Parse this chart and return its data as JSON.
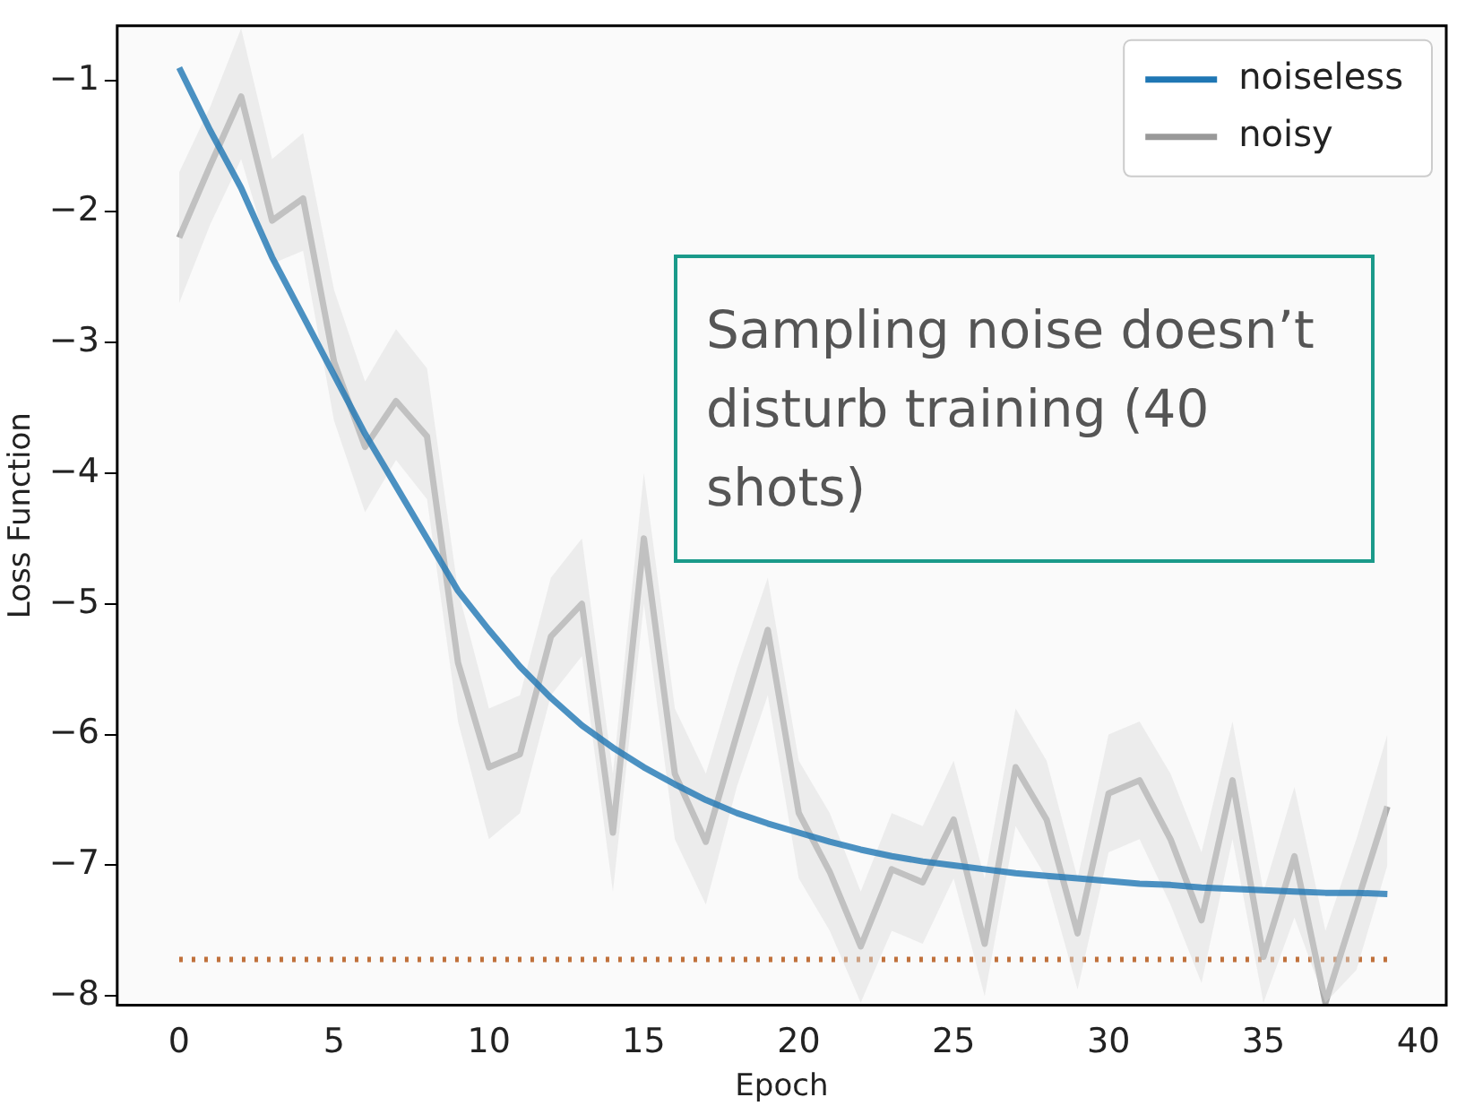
{
  "chart_data": {
    "type": "line",
    "xlabel": "Epoch",
    "ylabel": "Loss Function",
    "x": [
      0,
      1,
      2,
      3,
      4,
      5,
      6,
      7,
      8,
      9,
      10,
      11,
      12,
      13,
      14,
      15,
      16,
      17,
      18,
      19,
      20,
      21,
      22,
      23,
      24,
      25,
      26,
      27,
      28,
      29,
      30,
      31,
      32,
      33,
      34,
      35,
      36,
      37,
      38,
      39
    ],
    "series": [
      {
        "name": "noiseless",
        "color": "#1f77b4",
        "values": [
          -0.9,
          -1.38,
          -1.82,
          -2.35,
          -2.8,
          -3.25,
          -3.7,
          -4.1,
          -4.5,
          -4.9,
          -5.2,
          -5.48,
          -5.72,
          -5.93,
          -6.1,
          -6.25,
          -6.38,
          -6.5,
          -6.6,
          -6.68,
          -6.75,
          -6.82,
          -6.88,
          -6.93,
          -6.97,
          -7.0,
          -7.03,
          -7.06,
          -7.08,
          -7.1,
          -7.12,
          -7.14,
          -7.15,
          -7.17,
          -7.18,
          -7.19,
          -7.2,
          -7.21,
          -7.21,
          -7.22
        ]
      },
      {
        "name": "noisy",
        "color": "#999999",
        "values": [
          -2.2,
          -1.65,
          -1.12,
          -2.07,
          -1.9,
          -3.15,
          -3.8,
          -3.45,
          -3.72,
          -5.45,
          -6.25,
          -6.15,
          -5.25,
          -5.0,
          -6.75,
          -4.5,
          -6.3,
          -6.82,
          -6.0,
          -5.2,
          -6.6,
          -7.05,
          -7.62,
          -7.03,
          -7.13,
          -6.65,
          -7.6,
          -6.25,
          -6.65,
          -7.52,
          -6.45,
          -6.35,
          -6.8,
          -7.42,
          -6.35,
          -7.7,
          -6.93,
          -8.05,
          -7.3,
          -6.55
        ],
        "lower": [
          -2.7,
          -2.1,
          -1.6,
          -2.4,
          -2.3,
          -3.6,
          -4.3,
          -3.9,
          -4.2,
          -5.9,
          -6.8,
          -6.6,
          -5.7,
          -5.4,
          -7.2,
          -5.0,
          -6.8,
          -7.3,
          -6.4,
          -5.7,
          -7.1,
          -7.5,
          -8.05,
          -7.5,
          -7.6,
          -7.1,
          -8.0,
          -6.7,
          -7.1,
          -7.95,
          -6.9,
          -6.8,
          -7.3,
          -7.9,
          -6.8,
          -8.05,
          -7.4,
          -8.05,
          -7.8,
          -7.0
        ],
        "upper": [
          -1.7,
          -1.2,
          -0.6,
          -1.6,
          -1.4,
          -2.6,
          -3.3,
          -2.9,
          -3.2,
          -4.9,
          -5.8,
          -5.7,
          -4.8,
          -4.5,
          -6.3,
          -4.0,
          -5.8,
          -6.3,
          -5.5,
          -4.8,
          -6.2,
          -6.6,
          -7.2,
          -6.6,
          -6.7,
          -6.2,
          -7.1,
          -5.8,
          -6.2,
          -7.1,
          -6.0,
          -5.9,
          -6.3,
          -6.9,
          -5.9,
          -7.2,
          -6.4,
          -7.5,
          -6.8,
          -6.0
        ]
      }
    ],
    "ref_lines": [
      {
        "axis": "y",
        "value": -7.72,
        "color": "#c0703a",
        "line_style": "dotted"
      }
    ],
    "annotations": [
      "Sampling noise doesn’t disturb training (40 shots)"
    ],
    "xlim": [
      -2,
      40.9
    ],
    "ylim": [
      -8.07,
      -0.58
    ],
    "xticks": [
      0,
      5,
      10,
      15,
      20,
      25,
      30,
      35,
      40
    ],
    "yticks": [
      -8,
      -7,
      -6,
      -5,
      -4,
      -3,
      -2,
      -1
    ],
    "grid": false,
    "legend": "top right",
    "marker": "none",
    "line_style": "solid"
  }
}
